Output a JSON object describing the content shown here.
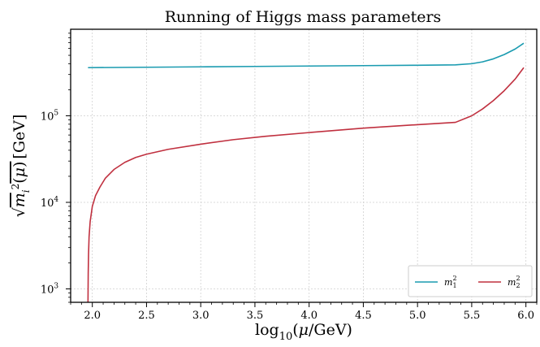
{
  "chart_data": {
    "type": "line",
    "title": "Running of Higgs mass parameters",
    "xlabel": "log10(μ/GeV)",
    "ylabel": "√m_i²(μ) [GeV]",
    "xlim": [
      1.8,
      6.1
    ],
    "ylim": [
      700,
      1000000
    ],
    "yscale": "log",
    "grid": true,
    "legend_position": "lower-right",
    "x_ticks": [
      "2.0",
      "2.5",
      "3.0",
      "3.5",
      "4.0",
      "4.5",
      "5.0",
      "5.5",
      "6.0"
    ],
    "y_ticks": [
      {
        "value": 1000,
        "base": "10",
        "exp": "3"
      },
      {
        "value": 10000,
        "base": "10",
        "exp": "4"
      },
      {
        "value": 100000,
        "base": "10",
        "exp": "5"
      }
    ],
    "series": [
      {
        "name": "m1²",
        "legend_base": "m",
        "legend_sub": "1",
        "legend_sup": "2",
        "color": "#1a9bb0",
        "x": [
          1.96,
          2.5,
          3.0,
          3.5,
          4.0,
          4.5,
          5.0,
          5.35,
          5.5,
          5.6,
          5.7,
          5.8,
          5.9,
          5.98
        ],
        "y": [
          360000,
          364000,
          368000,
          372000,
          376000,
          380000,
          384000,
          388000,
          400000,
          420000,
          455000,
          510000,
          590000,
          690000
        ]
      },
      {
        "name": "m2²",
        "legend_base": "m",
        "legend_sub": "2",
        "legend_sup": "2",
        "color": "#c0303f",
        "x": [
          1.96,
          1.962,
          1.965,
          1.97,
          1.98,
          2.0,
          2.03,
          2.07,
          2.12,
          2.2,
          2.3,
          2.4,
          2.5,
          2.7,
          3.0,
          3.3,
          3.6,
          4.0,
          4.5,
          5.0,
          5.35,
          5.5,
          5.6,
          5.7,
          5.8,
          5.9,
          5.98
        ],
        "y": [
          700,
          1500,
          2500,
          4000,
          6000,
          9000,
          12000,
          15000,
          19000,
          24000,
          29000,
          33000,
          36000,
          41000,
          47000,
          53000,
          58000,
          64000,
          72000,
          79000,
          84000,
          100000,
          120000,
          150000,
          195000,
          265000,
          360000
        ]
      }
    ]
  }
}
